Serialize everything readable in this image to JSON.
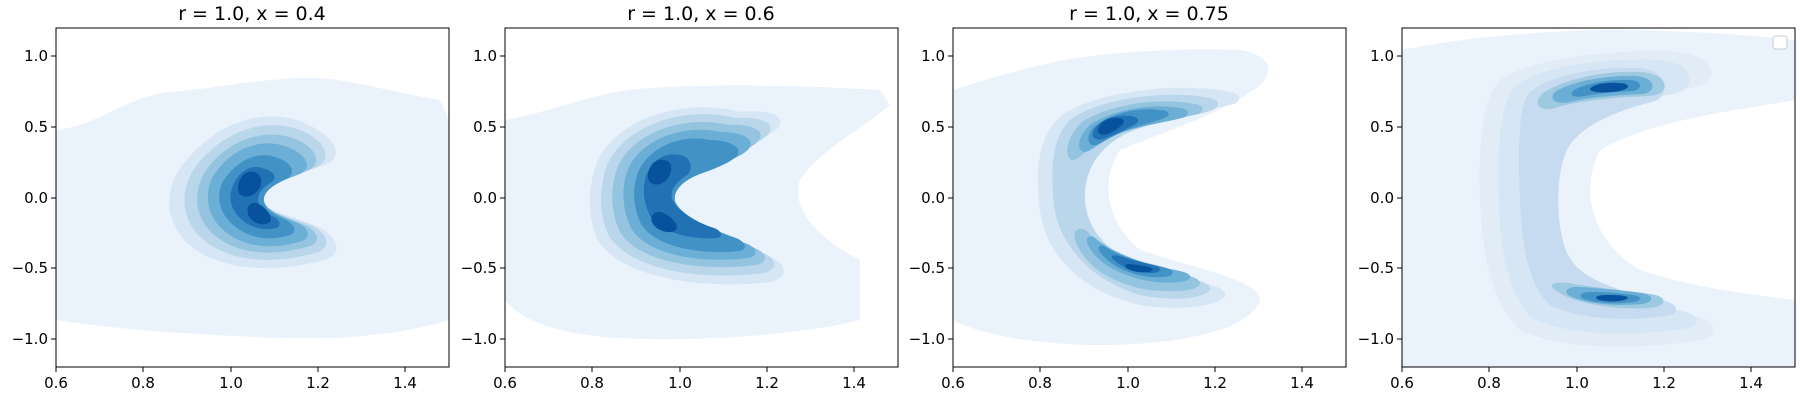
{
  "chart_data": [
    {
      "type": "heatmap",
      "subtype": "kde-contour",
      "title": "r = 1.0, x = 0.4",
      "xlabel": "",
      "ylabel": "",
      "xlim": [
        0.6,
        1.5
      ],
      "ylim": [
        -1.2,
        1.2
      ],
      "xticks": [
        "0.6",
        "0.8",
        "1.0",
        "1.2",
        "1.4"
      ],
      "yticks": [
        "−1.0",
        "−0.5",
        "0.0",
        "0.5",
        "1.0"
      ],
      "colormap": "Blues",
      "peaks": [
        {
          "x": 1.05,
          "y": 0.12
        },
        {
          "x": 1.08,
          "y": -0.18
        }
      ],
      "path_apex_x": 0.93,
      "path_tips": [
        {
          "x": 1.15,
          "y": 0.45
        },
        {
          "x": 1.15,
          "y": -0.45
        }
      ]
    },
    {
      "type": "heatmap",
      "subtype": "kde-contour",
      "title": "r = 1.0, x = 0.6",
      "xlabel": "",
      "ylabel": "",
      "xlim": [
        0.6,
        1.5
      ],
      "ylim": [
        -1.2,
        1.2
      ],
      "xticks": [
        "0.6",
        "0.8",
        "1.0",
        "1.2",
        "1.4"
      ],
      "yticks": [
        "−1.0",
        "−0.5",
        "0.0",
        "0.5",
        "1.0"
      ],
      "colormap": "Blues",
      "peaks": [
        {
          "x": 0.9,
          "y": 0.22
        },
        {
          "x": 0.93,
          "y": -0.25
        }
      ],
      "path_apex_x": 0.85,
      "path_tips": [
        {
          "x": 1.12,
          "y": 0.52
        },
        {
          "x": 1.15,
          "y": -0.52
        }
      ]
    },
    {
      "type": "heatmap",
      "subtype": "kde-contour",
      "title": "r = 1.0, x = 0.75",
      "xlabel": "",
      "ylabel": "",
      "xlim": [
        0.6,
        1.5
      ],
      "ylim": [
        -1.2,
        1.2
      ],
      "xticks": [
        "0.6",
        "0.8",
        "1.0",
        "1.2",
        "1.4"
      ],
      "yticks": [
        "−1.0",
        "−0.5",
        "0.0",
        "0.5",
        "1.0"
      ],
      "colormap": "Blues",
      "peaks": [
        {
          "x": 0.9,
          "y": 0.47
        },
        {
          "x": 0.98,
          "y": -0.6
        }
      ],
      "path_apex_x": 0.82,
      "path_tips": [
        {
          "x": 1.1,
          "y": 0.66
        },
        {
          "x": 1.15,
          "y": -0.66
        }
      ]
    },
    {
      "type": "heatmap",
      "subtype": "kde-contour",
      "title": "",
      "xlabel": "",
      "ylabel": "",
      "xlim": [
        0.6,
        1.5
      ],
      "ylim": [
        -1.2,
        1.2
      ],
      "xticks": [
        "0.6",
        "0.8",
        "1.0",
        "1.2",
        "1.4"
      ],
      "yticks": [
        "−1.0",
        "−0.5",
        "0.0",
        "0.5",
        "1.0"
      ],
      "colormap": "Blues",
      "legend": "top-right (empty)",
      "peaks": [
        {
          "x": 1.05,
          "y": 0.78
        },
        {
          "x": 1.05,
          "y": -0.78
        }
      ],
      "path_apex_x": 0.86,
      "path_tips": [
        {
          "x": 1.2,
          "y": 0.78
        },
        {
          "x": 1.2,
          "y": -0.78
        }
      ]
    }
  ]
}
